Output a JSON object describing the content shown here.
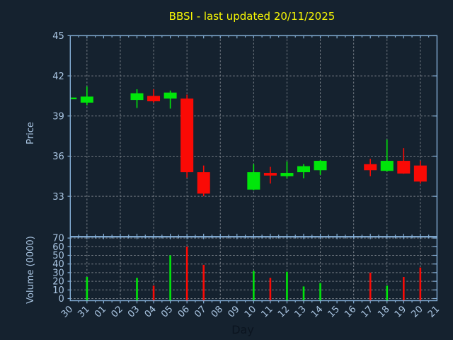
{
  "chart_data": {
    "type": "candlestick",
    "title": "BBSI - last updated 20/11/2025",
    "x_axis_label": "Day",
    "price_axis": {
      "label": "Price",
      "ticks": [
        45,
        42,
        39,
        36,
        33
      ],
      "range": [
        30,
        45
      ]
    },
    "volume_axis": {
      "label": "Volume (0000)",
      "ticks": [
        70,
        60,
        50,
        40,
        30,
        20,
        10,
        0
      ],
      "range": [
        0,
        70
      ]
    },
    "x_labels": [
      "30",
      "31",
      "01",
      "02",
      "03",
      "04",
      "05",
      "06",
      "07",
      "08",
      "09",
      "10",
      "11",
      "12",
      "13",
      "14",
      "15",
      "16",
      "17",
      "18",
      "19",
      "20",
      "21"
    ],
    "grid": true,
    "legend": "none",
    "candles": [
      {
        "day": "30",
        "open": 40.25,
        "high": 40.4,
        "low": 40.2,
        "close": 40.38,
        "volume": 0
      },
      {
        "day": "31",
        "open": 40.0,
        "high": 41.2,
        "low": 39.8,
        "close": 40.45,
        "volume": 25
      },
      {
        "day": "03",
        "open": 40.2,
        "high": 41.0,
        "low": 39.6,
        "close": 40.7,
        "volume": 24
      },
      {
        "day": "04",
        "open": 40.5,
        "high": 41.0,
        "low": 40.0,
        "close": 40.1,
        "volume": 15
      },
      {
        "day": "05",
        "open": 40.3,
        "high": 40.9,
        "low": 39.55,
        "close": 40.75,
        "volume": 50
      },
      {
        "day": "06",
        "open": 40.3,
        "high": 40.6,
        "low": 34.4,
        "close": 34.8,
        "volume": 60
      },
      {
        "day": "07",
        "open": 34.8,
        "high": 35.3,
        "low": 33.0,
        "close": 33.2,
        "volume": 39
      },
      {
        "day": "10",
        "open": 33.5,
        "high": 35.4,
        "low": 33.45,
        "close": 34.8,
        "volume": 32
      },
      {
        "day": "11",
        "open": 34.75,
        "high": 35.2,
        "low": 33.95,
        "close": 34.55,
        "volume": 24
      },
      {
        "day": "12",
        "open": 34.5,
        "high": 35.6,
        "low": 34.35,
        "close": 34.75,
        "volume": 31
      },
      {
        "day": "13",
        "open": 34.8,
        "high": 35.4,
        "low": 34.35,
        "close": 35.25,
        "volume": 14
      },
      {
        "day": "14",
        "open": 34.95,
        "high": 35.7,
        "low": 34.6,
        "close": 35.65,
        "volume": 18
      },
      {
        "day": "17",
        "open": 35.4,
        "high": 35.8,
        "low": 34.5,
        "close": 34.95,
        "volume": 30
      },
      {
        "day": "18",
        "open": 34.9,
        "high": 37.25,
        "low": 34.85,
        "close": 35.65,
        "volume": 15
      },
      {
        "day": "19",
        "open": 35.65,
        "high": 36.6,
        "low": 34.68,
        "close": 34.7,
        "volume": 25
      },
      {
        "day": "20",
        "open": 35.3,
        "high": 35.65,
        "low": 33.95,
        "close": 34.1,
        "volume": 36
      }
    ],
    "colors": {
      "background": "#15222f",
      "up": "#00e60a",
      "down": "#fa0a05",
      "frame": "#84aed6",
      "grid": "#8e949c",
      "tick_label": "#aac6e3",
      "title": "#f7f704",
      "x_axis_label_color": "#0b141f"
    }
  }
}
